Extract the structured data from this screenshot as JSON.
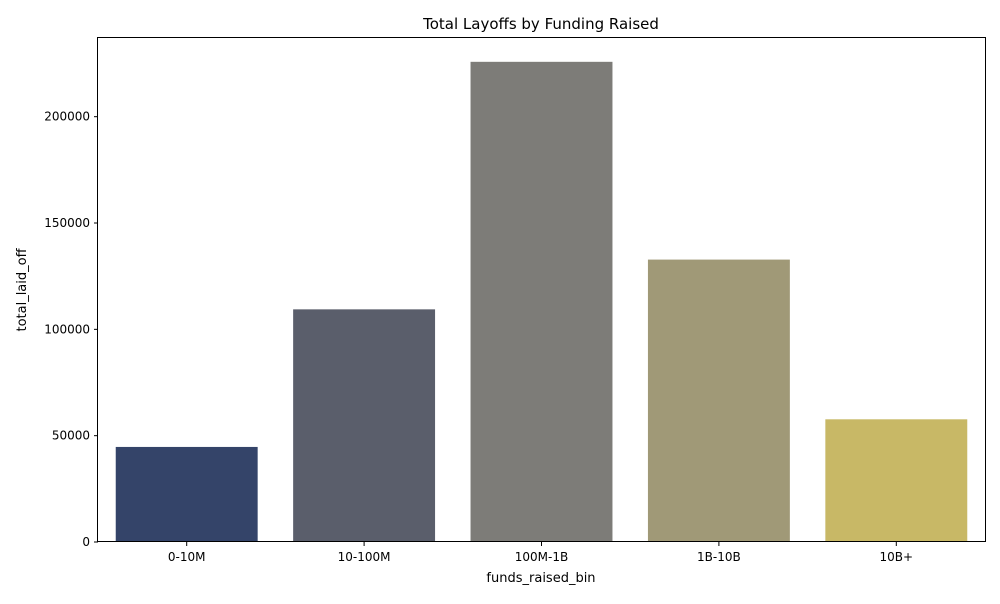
{
  "chart_data": {
    "type": "bar",
    "title": "Total Layoffs by Funding Raised",
    "xlabel": "funds_raised_bin",
    "ylabel": "total_laid_off",
    "categories": [
      "0-10M",
      "10-100M",
      "100M-1B",
      "1B-10B",
      "10B+"
    ],
    "values": [
      44700,
      109400,
      225800,
      132800,
      57700
    ],
    "colors": [
      "#344469",
      "#5a5e6b",
      "#7d7c78",
      "#a09977",
      "#c8b866"
    ],
    "yticks": [
      0,
      50000,
      100000,
      150000,
      200000
    ],
    "ytick_labels": [
      "0",
      "50000",
      "100000",
      "150000",
      "200000"
    ],
    "ylim": [
      0,
      237000
    ],
    "grid": false,
    "legend": "none"
  }
}
